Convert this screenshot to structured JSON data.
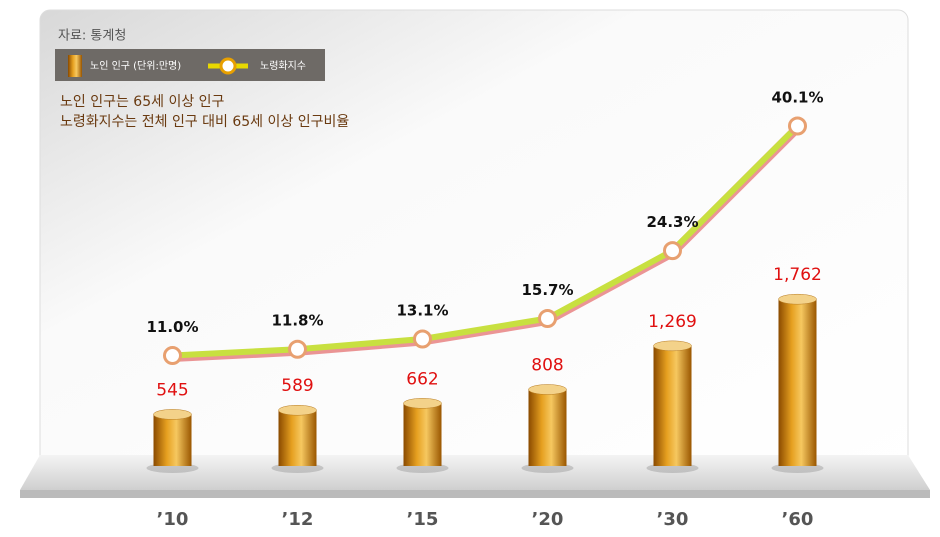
{
  "chart_data": {
    "type": "bar-line",
    "source": "자료: 통계청",
    "annotations": [
      "노인 인구는 65세 이상 인구",
      "노령화지수는 전체 인구 대비 65세 이상 인구비율"
    ],
    "categories": [
      "’10",
      "’12",
      "’15",
      "’20",
      "’30",
      "’60"
    ],
    "series": [
      {
        "name": "노인 인구 (단위:만명)",
        "type": "bar",
        "color": "#d98a10",
        "values": [
          545,
          589,
          662,
          808,
          1269,
          1762
        ],
        "value_labels": [
          "545",
          "589",
          "662",
          "808",
          "1,269",
          "1,762"
        ]
      },
      {
        "name": "노령화지수",
        "type": "line",
        "axis": "y2",
        "color": "#c8e040",
        "values": [
          11.0,
          11.8,
          13.1,
          15.7,
          24.3,
          40.1
        ],
        "value_labels": [
          "11.0%",
          "11.8%",
          "13.1%",
          "15.7%",
          "24.3%",
          "40.1%"
        ]
      }
    ],
    "ylim": [
      0,
      4500
    ],
    "y2lim": [
      -3,
      51
    ]
  }
}
